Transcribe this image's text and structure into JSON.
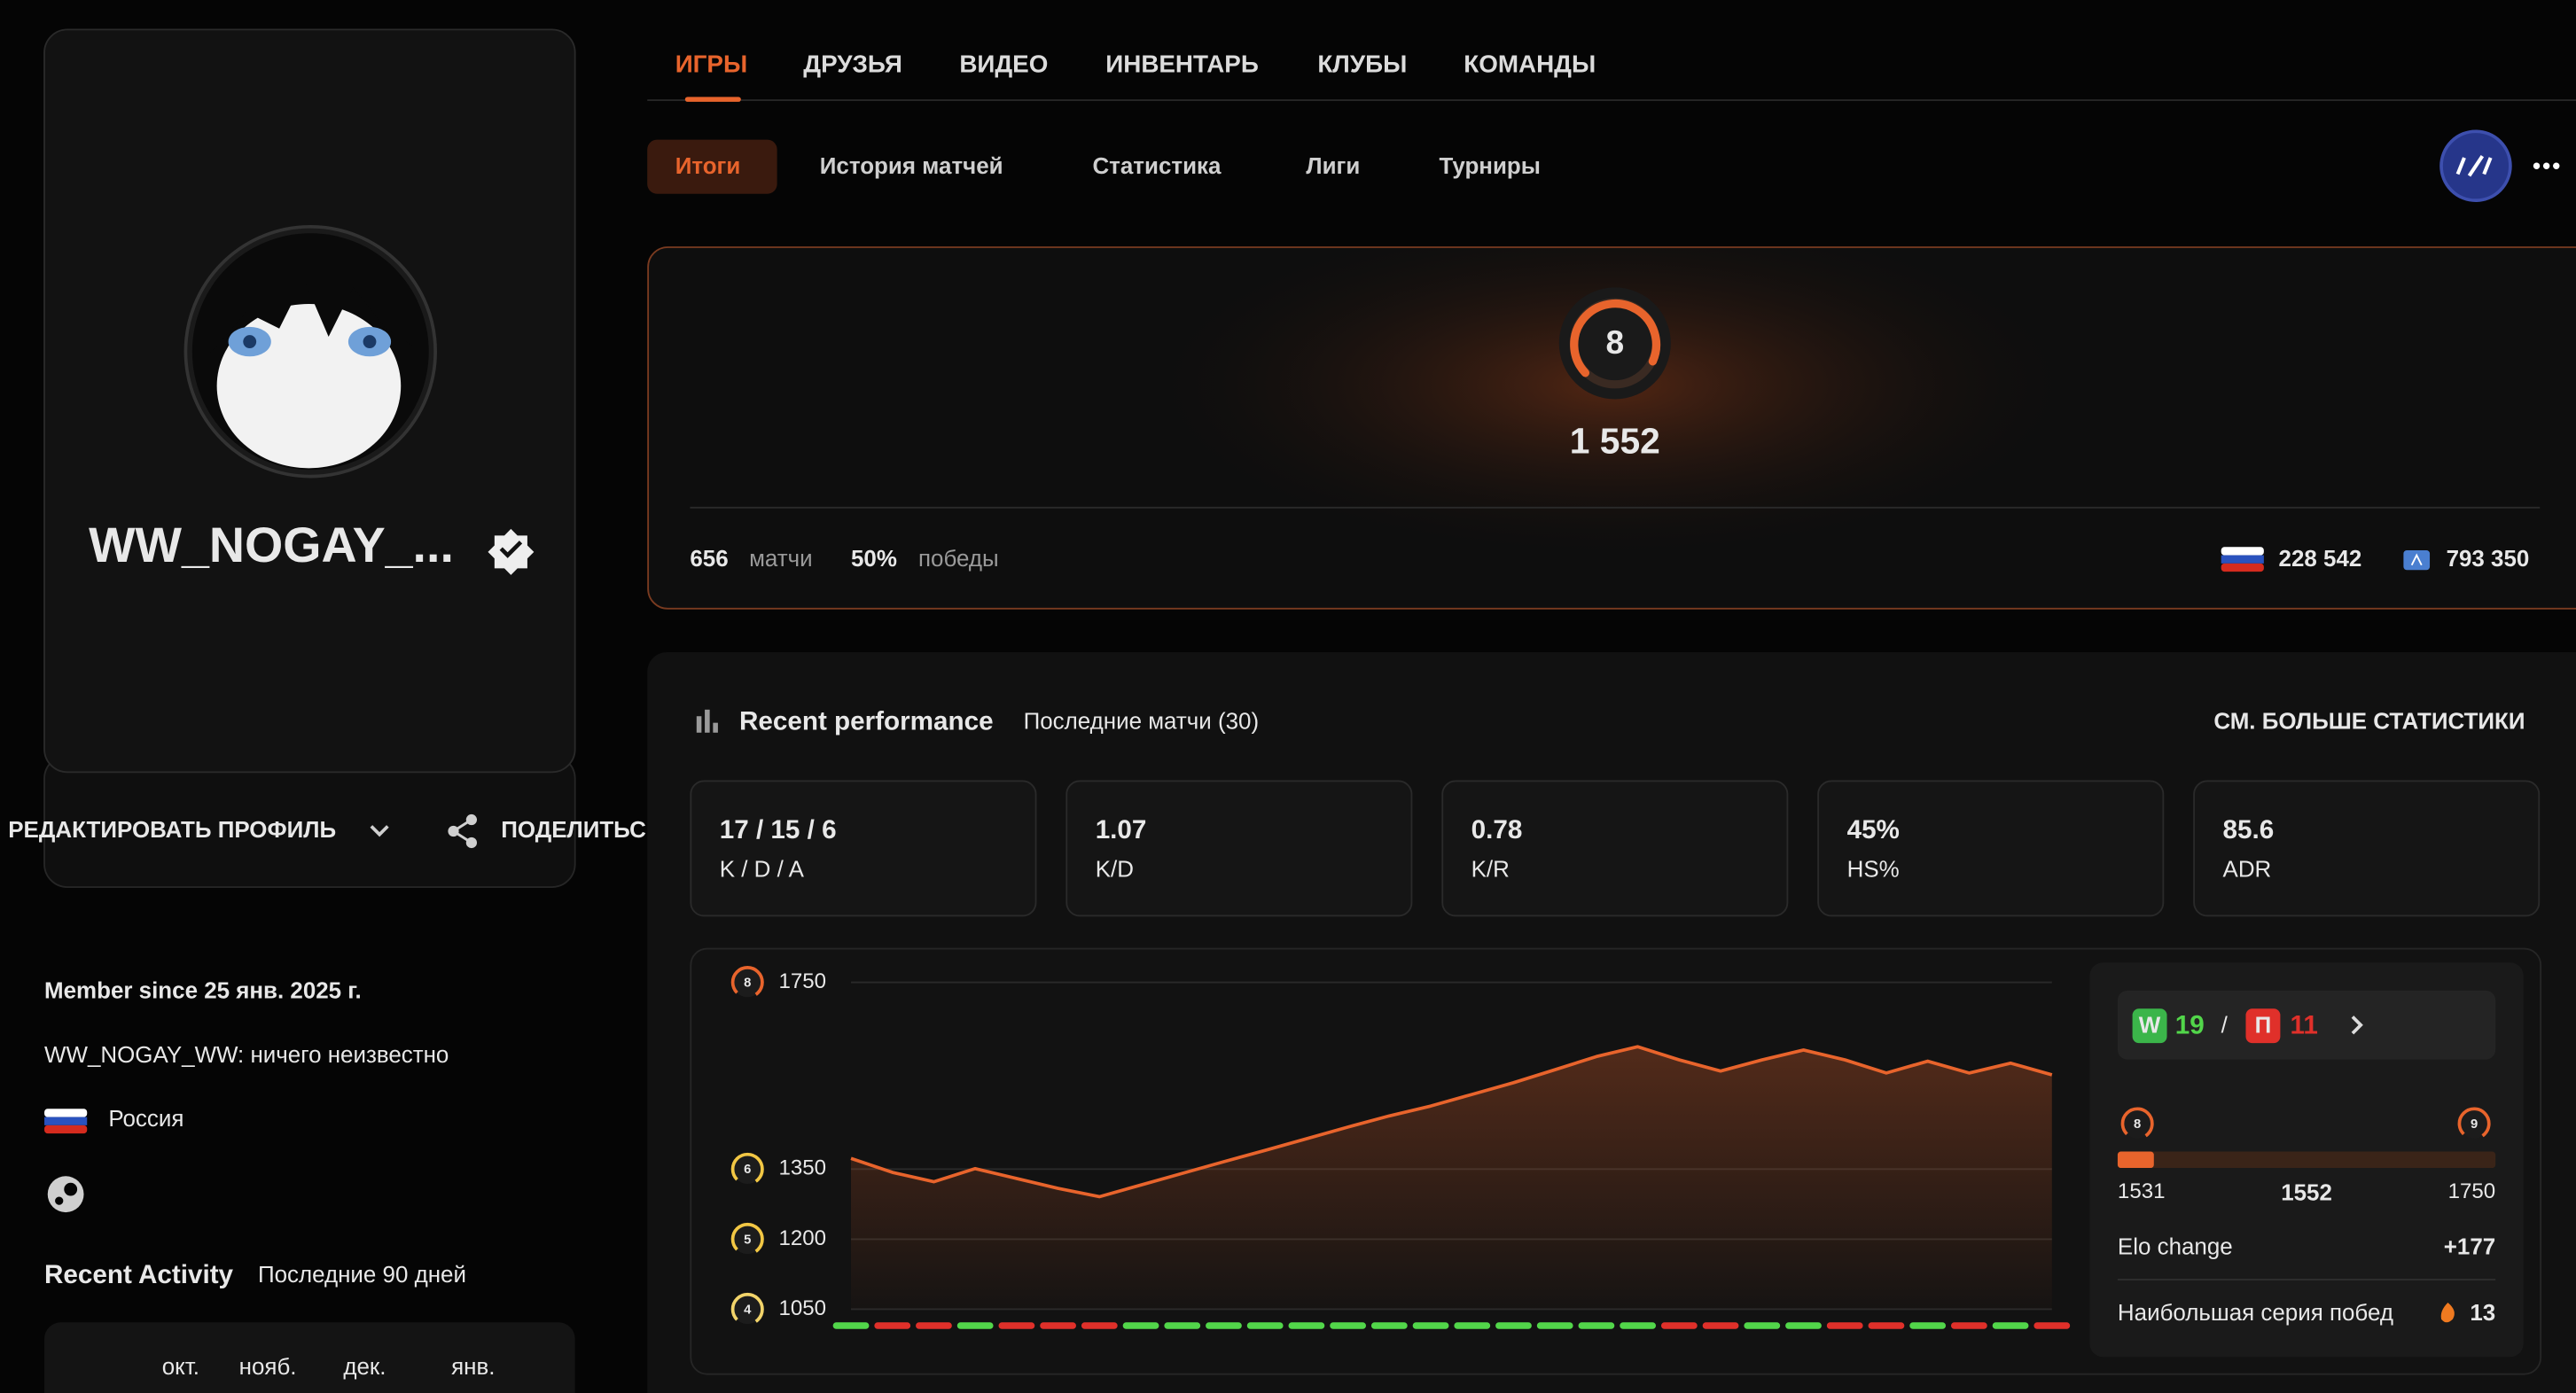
{
  "nav": {
    "tabs": [
      "ИГРЫ",
      "ДРУЗЬЯ",
      "ВИДЕО",
      "ИНВЕНТАРЬ",
      "КЛУБЫ",
      "КОМАНДЫ"
    ],
    "subtabs": [
      "Итоги",
      "История матчей",
      "Статистика",
      "Лиги",
      "Турниры"
    ]
  },
  "profile": {
    "name": "WW_NOGAY_...",
    "edit": "РЕДАКТИРОВАТЬ ПРОФИЛЬ",
    "share": "ПОДЕЛИТЬС",
    "member_since": "Member since 25 янв. 2025 г.",
    "bio": "WW_NOGAY_WW: ничего неизвестно",
    "country": "Россия",
    "activity_title": "Recent Activity",
    "activity_period": "Последние 90 дней",
    "activity_months": [
      "окт.",
      "нояб.",
      "дек.",
      "янв."
    ]
  },
  "summary": {
    "level": "8",
    "elo": "1 552",
    "matches": "656",
    "matches_label": "матчи",
    "winrate": "50%",
    "winrate_label": "победы",
    "country_rank": "228 542",
    "region_rank": "793 350"
  },
  "performance": {
    "title": "Recent performance",
    "subtitle": "Последние матчи (30)",
    "more": "СМ. БОЛЬШЕ СТАТИСТИКИ",
    "stats": [
      {
        "value": "17 / 15 / 6",
        "label": "K / D / A"
      },
      {
        "value": "1.07",
        "label": "K/D"
      },
      {
        "value": "0.78",
        "label": "K/R"
      },
      {
        "value": "45%",
        "label": "HS%"
      },
      {
        "value": "85.6",
        "label": "ADR"
      }
    ],
    "win_letter": "W",
    "wins": "19",
    "loss_letter": "П",
    "losses": "11",
    "progress": {
      "from_level": "8",
      "to_level": "9",
      "min": 1531,
      "value": 1552,
      "max": 1750
    },
    "elo_change_label": "Elo change",
    "elo_change": "+177",
    "streak_label": "Наибольшая серия побед",
    "streak": "13"
  },
  "chart_data": {
    "type": "line",
    "values": [
      1373,
      1343,
      1323,
      1351,
      1330,
      1309,
      1291,
      1316,
      1341,
      1366,
      1390,
      1415,
      1440,
      1464,
      1485,
      1510,
      1535,
      1563,
      1591,
      1612,
      1584,
      1560,
      1584,
      1605,
      1584,
      1556,
      1581,
      1556,
      1577,
      1552
    ],
    "color": "#e8642c",
    "ylim": [
      1050,
      1750
    ],
    "yticks": [
      1750,
      1350,
      1200,
      1050
    ],
    "tick_levels": [
      "8",
      "6",
      "5",
      "4"
    ],
    "tick_level_colors": [
      "#e8642c",
      "#f2c744",
      "#f2c744",
      "#f2d46a"
    ],
    "result_colors": [
      "#52d64a",
      "#e0302a",
      "#e0302a",
      "#52d64a",
      "#e0302a",
      "#e0302a",
      "#e0302a",
      "#52d64a",
      "#52d64a",
      "#52d64a",
      "#52d64a",
      "#52d64a",
      "#52d64a",
      "#52d64a",
      "#52d64a",
      "#52d64a",
      "#52d64a",
      "#52d64a",
      "#52d64a",
      "#52d64a",
      "#e0302a",
      "#e0302a",
      "#52d64a",
      "#52d64a",
      "#e0302a",
      "#e0302a",
      "#52d64a",
      "#e0302a",
      "#52d64a",
      "#e0302a"
    ],
    "grid": true
  }
}
